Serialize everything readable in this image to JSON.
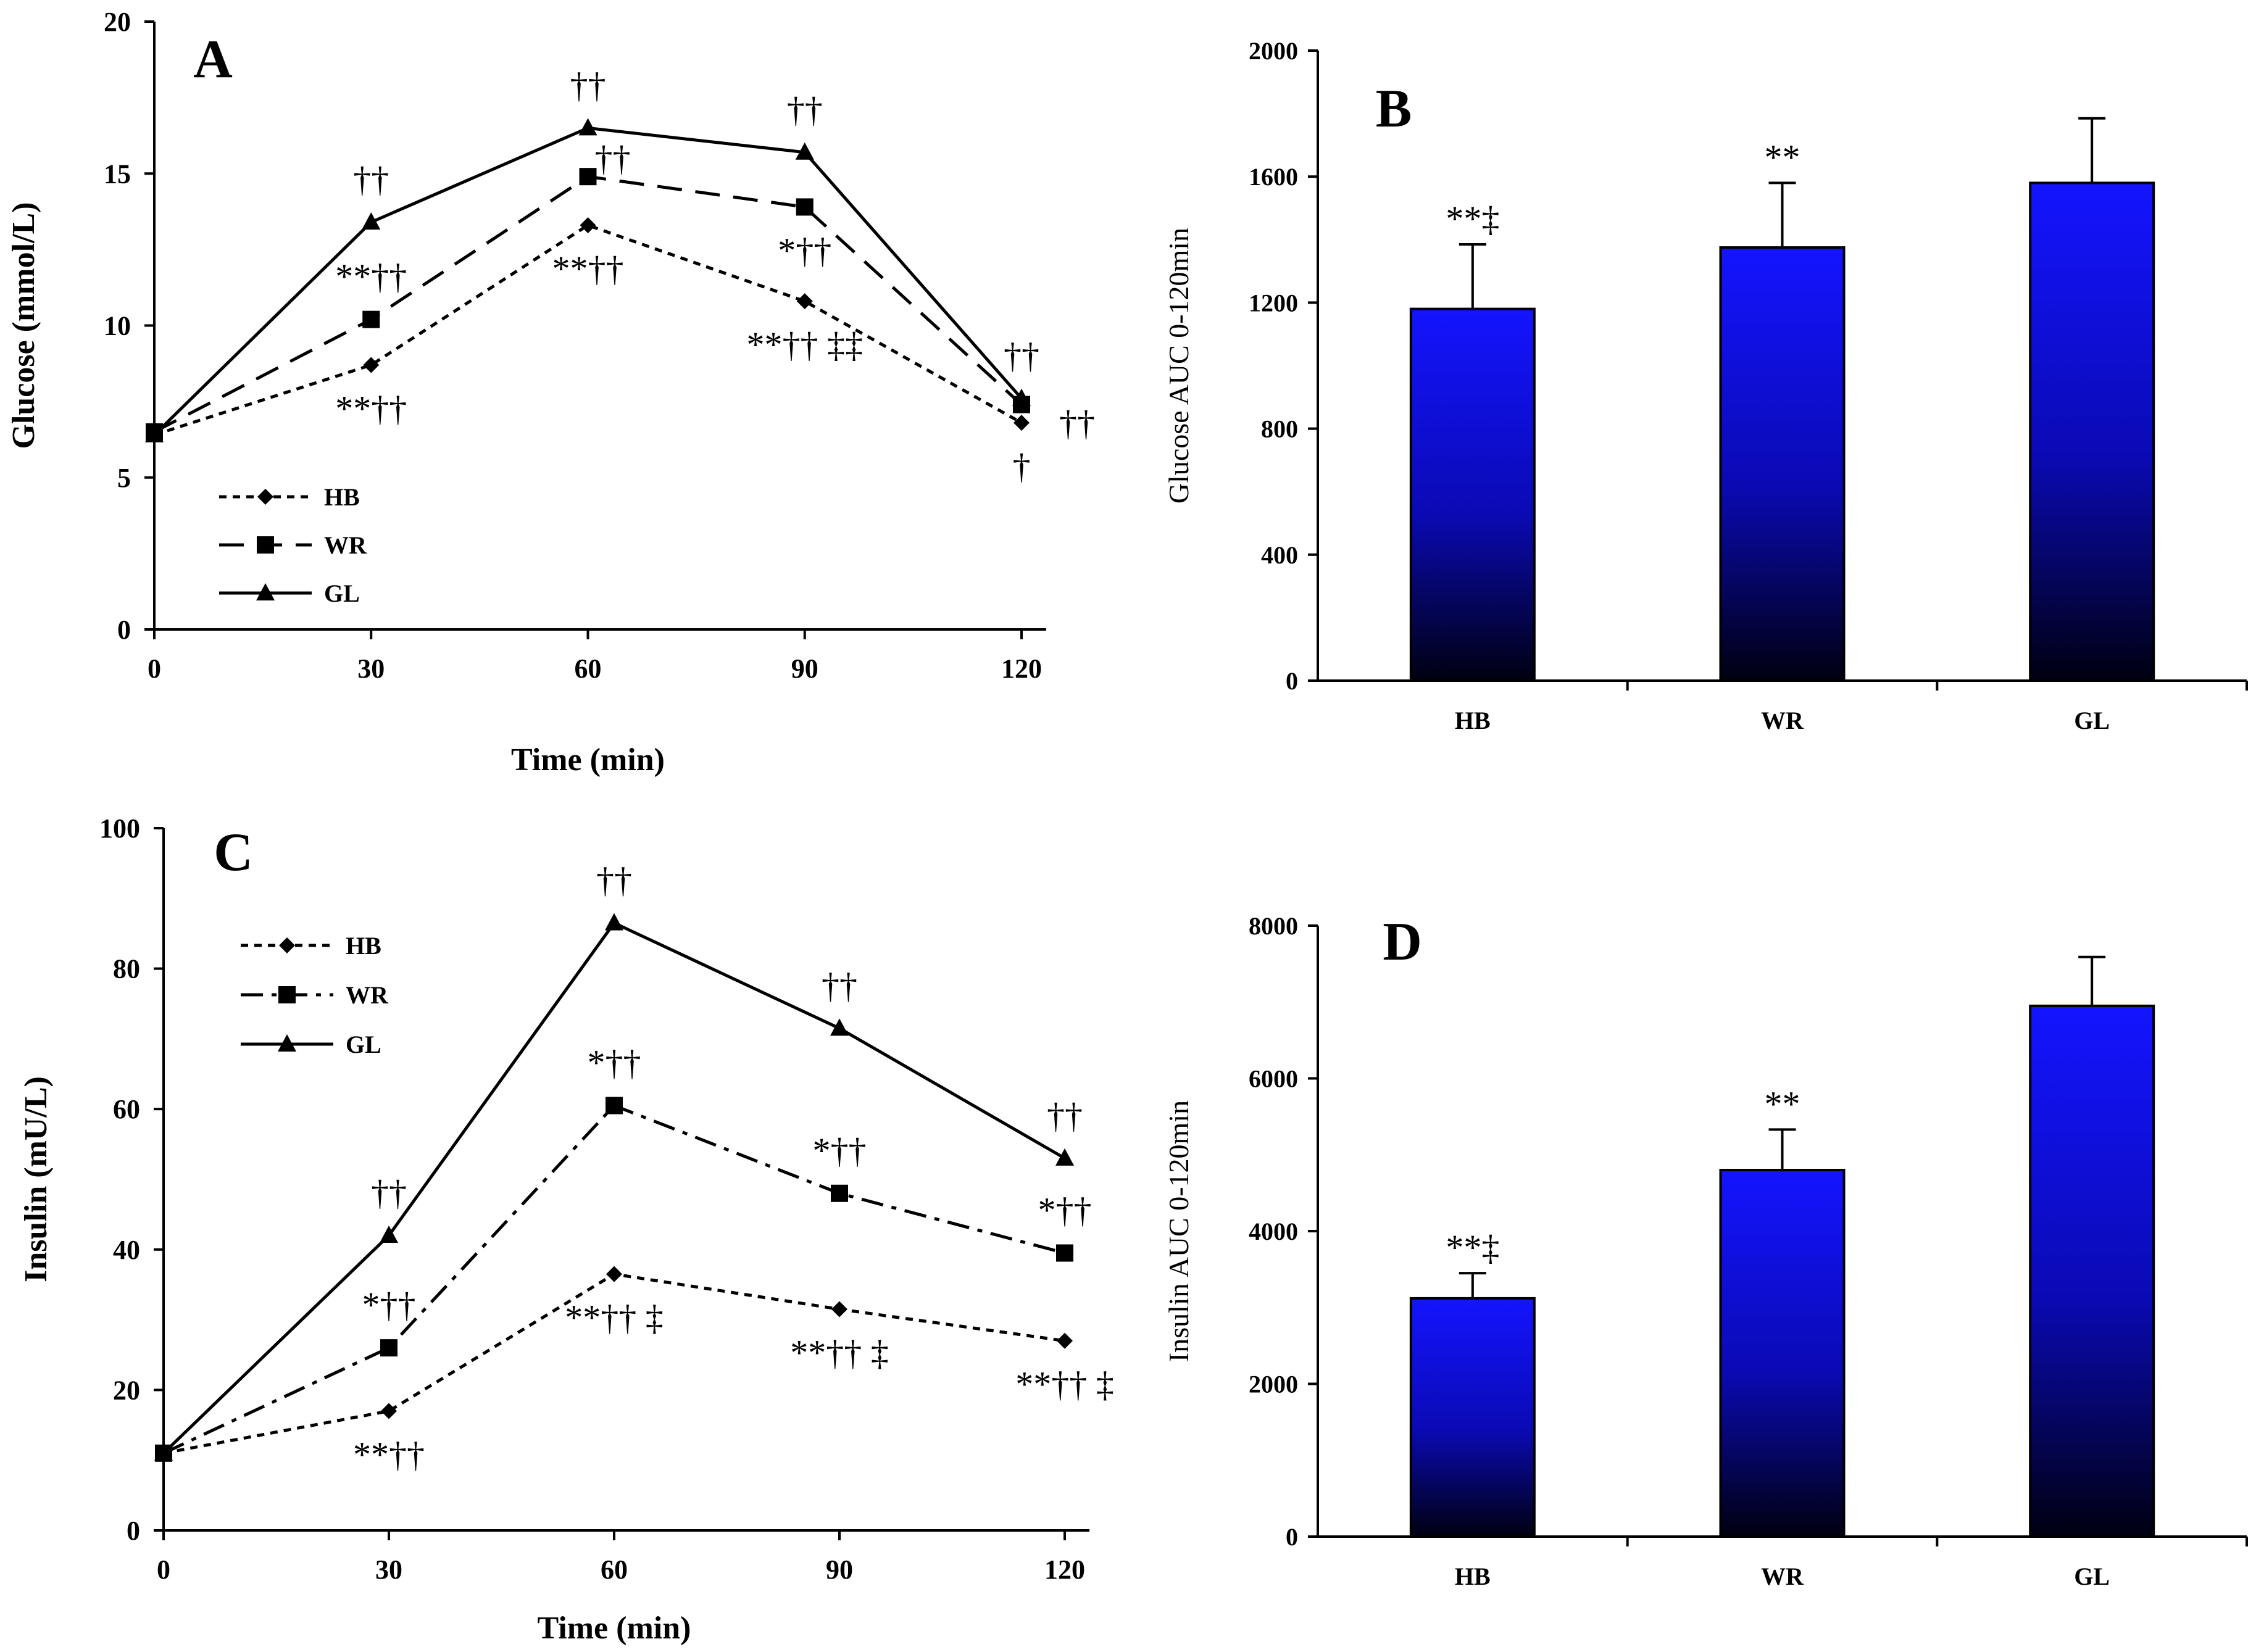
{
  "chart_data": [
    {
      "panel": "A",
      "type": "line",
      "title": "",
      "xlabel": "Time (min)",
      "ylabel": "Glucose (mmol/L)",
      "x": [
        0,
        30,
        60,
        90,
        120
      ],
      "xticks": [
        "0",
        "30",
        "60",
        "90",
        "120"
      ],
      "yticks": [
        "0",
        "5",
        "10",
        "15",
        "20"
      ],
      "xlim": [
        0,
        120
      ],
      "ylim": [
        0,
        20
      ],
      "series": [
        {
          "name": "HB",
          "marker": "diamond",
          "dash": "dotted",
          "values": [
            6.4,
            8.7,
            13.3,
            10.8,
            6.8
          ]
        },
        {
          "name": "WR",
          "marker": "square",
          "dash": "dashed",
          "values": [
            6.5,
            10.2,
            14.9,
            13.9,
            7.4
          ]
        },
        {
          "name": "GL",
          "marker": "triangle",
          "dash": "solid",
          "values": [
            6.4,
            13.4,
            16.5,
            15.7,
            7.6
          ]
        }
      ],
      "legend": [
        "HB",
        "WR",
        "GL"
      ],
      "annotations": [
        {
          "text": "††",
          "x": 30,
          "series": "GL",
          "pos": "above"
        },
        {
          "text": "**††",
          "x": 30,
          "series": "WR",
          "pos": "above"
        },
        {
          "text": "**††",
          "x": 30,
          "series": "HB",
          "pos": "below"
        },
        {
          "text": "††",
          "x": 60,
          "series": "GL",
          "pos": "above"
        },
        {
          "text": "††",
          "x": 60,
          "series": "WR",
          "pos": "above-right"
        },
        {
          "text": "**††",
          "x": 60,
          "series": "HB",
          "pos": "below"
        },
        {
          "text": "††",
          "x": 90,
          "series": "GL",
          "pos": "above"
        },
        {
          "text": "*††",
          "x": 90,
          "series": "WR",
          "pos": "below"
        },
        {
          "text": "**†† ‡‡",
          "x": 90,
          "series": "HB",
          "pos": "below"
        },
        {
          "text": "††",
          "x": 120,
          "series": "GL",
          "pos": "above"
        },
        {
          "text": "††",
          "x": 120,
          "series": "HB",
          "pos": "right"
        },
        {
          "text": "†",
          "x": 120,
          "series": "HB",
          "pos": "below"
        }
      ]
    },
    {
      "panel": "B",
      "type": "bar",
      "title": "",
      "xlabel": "",
      "ylabel": "Glucose AUC 0-120min",
      "categories": [
        "HB",
        "WR",
        "GL"
      ],
      "values": [
        1180,
        1375,
        1580
      ],
      "errors": [
        205,
        205,
        205
      ],
      "yticks": [
        "0",
        "400",
        "800",
        "1200",
        "1600",
        "2000"
      ],
      "ylim": [
        0,
        2000
      ],
      "annotations": [
        "**‡",
        "**",
        ""
      ]
    },
    {
      "panel": "C",
      "type": "line",
      "title": "",
      "xlabel": "Time (min)",
      "ylabel": "Insulin (mU/L)",
      "x": [
        0,
        30,
        60,
        90,
        120
      ],
      "xticks": [
        "0",
        "30",
        "60",
        "90",
        "120"
      ],
      "yticks": [
        "0",
        "20",
        "40",
        "60",
        "80",
        "100"
      ],
      "xlim": [
        0,
        120
      ],
      "ylim": [
        0,
        100
      ],
      "series": [
        {
          "name": "HB",
          "marker": "diamond",
          "dash": "dotted",
          "values": [
            11,
            17,
            36.5,
            31.5,
            27
          ]
        },
        {
          "name": "WR",
          "marker": "square",
          "dash": "dashdot",
          "values": [
            11,
            26,
            60.5,
            48,
            39.5
          ]
        },
        {
          "name": "GL",
          "marker": "triangle",
          "dash": "solid",
          "values": [
            11,
            42,
            86.5,
            71.5,
            53
          ]
        }
      ],
      "legend": [
        "HB",
        "WR",
        "GL"
      ],
      "annotations": [
        {
          "text": "††",
          "x": 30,
          "series": "GL",
          "pos": "above"
        },
        {
          "text": "*††",
          "x": 30,
          "series": "WR",
          "pos": "above"
        },
        {
          "text": "**††",
          "x": 30,
          "series": "HB",
          "pos": "below"
        },
        {
          "text": "††",
          "x": 60,
          "series": "GL",
          "pos": "above"
        },
        {
          "text": "*††",
          "x": 60,
          "series": "WR",
          "pos": "above"
        },
        {
          "text": "**†† ‡",
          "x": 60,
          "series": "HB",
          "pos": "below"
        },
        {
          "text": "††",
          "x": 90,
          "series": "GL",
          "pos": "above"
        },
        {
          "text": "*††",
          "x": 90,
          "series": "WR",
          "pos": "above"
        },
        {
          "text": "**†† ‡",
          "x": 90,
          "series": "HB",
          "pos": "below"
        },
        {
          "text": "††",
          "x": 120,
          "series": "GL",
          "pos": "above"
        },
        {
          "text": "*††",
          "x": 120,
          "series": "WR",
          "pos": "above"
        },
        {
          "text": "**†† ‡",
          "x": 120,
          "series": "HB",
          "pos": "below"
        }
      ]
    },
    {
      "panel": "D",
      "type": "bar",
      "title": "",
      "xlabel": "",
      "ylabel": "Insulin AUC 0-120min",
      "categories": [
        "HB",
        "WR",
        "GL"
      ],
      "values": [
        3120,
        4800,
        6950
      ],
      "errors": [
        330,
        530,
        640
      ],
      "yticks": [
        "0",
        "2000",
        "4000",
        "6000",
        "8000"
      ],
      "ylim": [
        0,
        8000
      ],
      "annotations": [
        "**‡",
        "**",
        ""
      ]
    }
  ],
  "colors": {
    "bar_top": "#1414ff",
    "bar_bottom": "#000010",
    "axis": "#000000"
  }
}
